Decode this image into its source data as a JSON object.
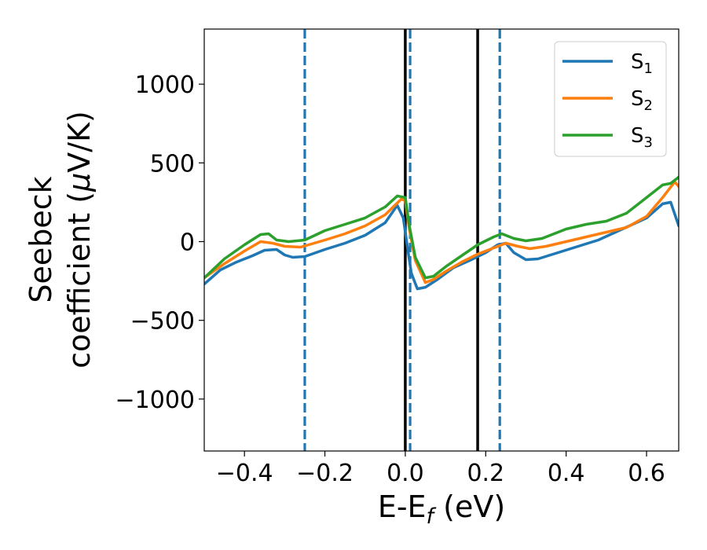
{
  "chart_data": {
    "type": "line",
    "xlabel": "E-E",
    "xlabel_sub": "f",
    "xlabel_unit": " (eV)",
    "ylabel_line1": "Seebeck",
    "ylabel_line2_pre": "coefficient  (",
    "ylabel_mu": "μ",
    "ylabel_line2_post": "V/K)",
    "xlim": [
      -0.5,
      0.68
    ],
    "ylim": [
      -1330,
      1350
    ],
    "xticks": [
      -0.4,
      -0.2,
      0.0,
      0.2,
      0.4,
      0.6
    ],
    "xtick_labels": [
      "−0.4",
      "−0.2",
      "0.0",
      "0.2",
      "0.4",
      "0.6"
    ],
    "yticks": [
      1000,
      500,
      0,
      -500,
      -1000
    ],
    "ytick_labels": [
      "1000",
      "500",
      "0",
      "−500",
      "−1000"
    ],
    "legend_position": "top-right",
    "grid": false,
    "vlines_dashed": {
      "color": "#1f77b4",
      "x": [
        -0.25,
        0.012,
        0.235
      ]
    },
    "vlines_solid": {
      "color": "#000000",
      "x": [
        0.0,
        0.18
      ]
    },
    "series": [
      {
        "name": "S",
        "name_sub": "1",
        "color": "#1f77b4",
        "points": [
          [
            -0.5,
            -270
          ],
          [
            -0.46,
            -180
          ],
          [
            -0.42,
            -130
          ],
          [
            -0.38,
            -90
          ],
          [
            -0.35,
            -55
          ],
          [
            -0.32,
            -50
          ],
          [
            -0.3,
            -85
          ],
          [
            -0.28,
            -100
          ],
          [
            -0.25,
            -95
          ],
          [
            -0.2,
            -50
          ],
          [
            -0.15,
            -10
          ],
          [
            -0.1,
            40
          ],
          [
            -0.05,
            120
          ],
          [
            -0.02,
            230
          ],
          [
            -0.005,
            150
          ],
          [
            0.005,
            -30
          ],
          [
            0.015,
            -200
          ],
          [
            0.03,
            -300
          ],
          [
            0.05,
            -290
          ],
          [
            0.08,
            -240
          ],
          [
            0.12,
            -165
          ],
          [
            0.16,
            -120
          ],
          [
            0.2,
            -70
          ],
          [
            0.23,
            -20
          ],
          [
            0.25,
            -10
          ],
          [
            0.27,
            -70
          ],
          [
            0.3,
            -115
          ],
          [
            0.33,
            -110
          ],
          [
            0.38,
            -70
          ],
          [
            0.43,
            -30
          ],
          [
            0.48,
            10
          ],
          [
            0.54,
            80
          ],
          [
            0.6,
            150
          ],
          [
            0.64,
            240
          ],
          [
            0.66,
            250
          ],
          [
            0.68,
            100
          ]
        ]
      },
      {
        "name": "S",
        "name_sub": "2",
        "color": "#ff7f0e",
        "points": [
          [
            -0.5,
            -230
          ],
          [
            -0.45,
            -140
          ],
          [
            -0.4,
            -60
          ],
          [
            -0.36,
            0
          ],
          [
            -0.33,
            -10
          ],
          [
            -0.3,
            -30
          ],
          [
            -0.26,
            -35
          ],
          [
            -0.2,
            10
          ],
          [
            -0.15,
            50
          ],
          [
            -0.1,
            100
          ],
          [
            -0.05,
            170
          ],
          [
            -0.01,
            270
          ],
          [
            0.0,
            260
          ],
          [
            0.01,
            80
          ],
          [
            0.025,
            -120
          ],
          [
            0.05,
            -260
          ],
          [
            0.07,
            -240
          ],
          [
            0.1,
            -190
          ],
          [
            0.14,
            -130
          ],
          [
            0.18,
            -80
          ],
          [
            0.22,
            -40
          ],
          [
            0.25,
            -10
          ],
          [
            0.28,
            -30
          ],
          [
            0.31,
            -45
          ],
          [
            0.35,
            -30
          ],
          [
            0.4,
            0
          ],
          [
            0.45,
            30
          ],
          [
            0.5,
            60
          ],
          [
            0.55,
            90
          ],
          [
            0.6,
            160
          ],
          [
            0.64,
            280
          ],
          [
            0.67,
            380
          ],
          [
            0.68,
            350
          ]
        ]
      },
      {
        "name": "S",
        "name_sub": "3",
        "color": "#2ca02c",
        "points": [
          [
            -0.5,
            -230
          ],
          [
            -0.45,
            -110
          ],
          [
            -0.4,
            -20
          ],
          [
            -0.36,
            45
          ],
          [
            -0.34,
            50
          ],
          [
            -0.32,
            10
          ],
          [
            -0.29,
            0
          ],
          [
            -0.25,
            10
          ],
          [
            -0.2,
            70
          ],
          [
            -0.15,
            110
          ],
          [
            -0.1,
            150
          ],
          [
            -0.05,
            220
          ],
          [
            -0.02,
            290
          ],
          [
            0.0,
            280
          ],
          [
            0.01,
            100
          ],
          [
            0.025,
            -100
          ],
          [
            0.05,
            -230
          ],
          [
            0.07,
            -220
          ],
          [
            0.1,
            -160
          ],
          [
            0.14,
            -90
          ],
          [
            0.18,
            -20
          ],
          [
            0.22,
            30
          ],
          [
            0.24,
            50
          ],
          [
            0.27,
            20
          ],
          [
            0.3,
            5
          ],
          [
            0.34,
            20
          ],
          [
            0.4,
            80
          ],
          [
            0.45,
            110
          ],
          [
            0.5,
            130
          ],
          [
            0.55,
            180
          ],
          [
            0.6,
            280
          ],
          [
            0.64,
            360
          ],
          [
            0.66,
            370
          ],
          [
            0.68,
            410
          ]
        ]
      }
    ]
  }
}
